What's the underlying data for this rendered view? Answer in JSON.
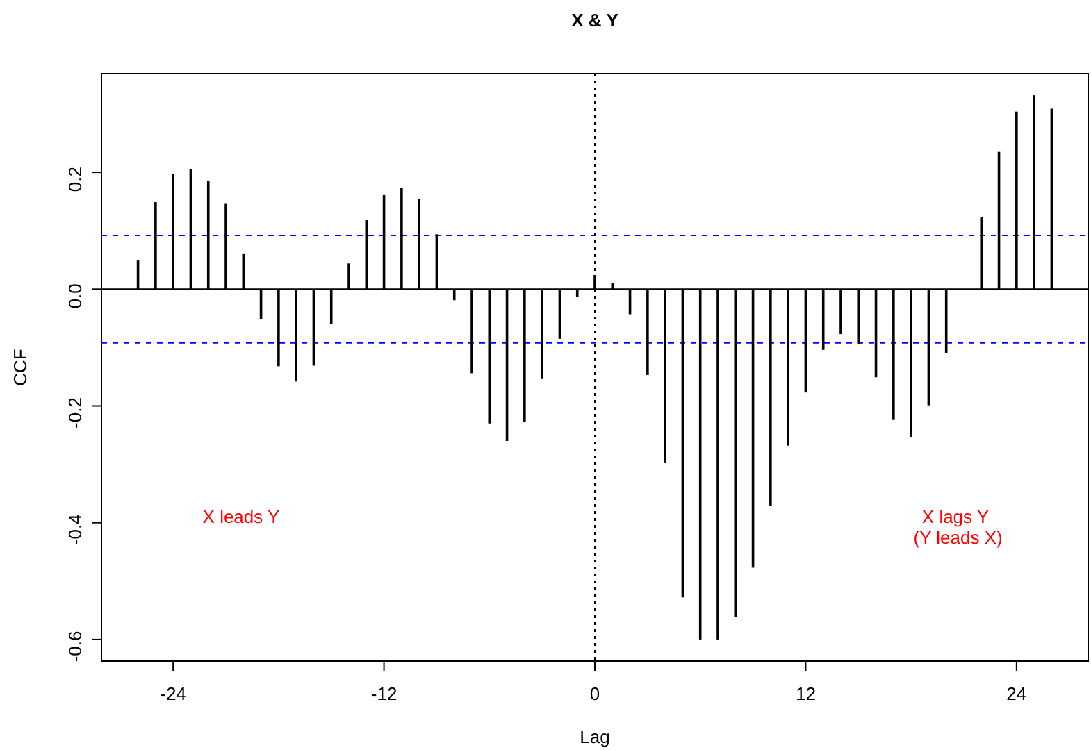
{
  "chart_data": {
    "type": "bar",
    "title": "X & Y",
    "xlabel": "Lag",
    "ylabel": "CCF",
    "x": [
      -26,
      -25,
      -24,
      -23,
      -22,
      -21,
      -20,
      -19,
      -18,
      -17,
      -16,
      -15,
      -14,
      -13,
      -12,
      -11,
      -10,
      -9,
      -8,
      -7,
      -6,
      -5,
      -4,
      -3,
      -2,
      -1,
      0,
      1,
      2,
      3,
      4,
      5,
      6,
      7,
      8,
      9,
      10,
      11,
      12,
      13,
      14,
      15,
      16,
      17,
      18,
      19,
      20,
      21,
      22,
      23,
      24,
      25,
      26
    ],
    "values": [
      0.049,
      0.149,
      0.197,
      0.206,
      0.185,
      0.146,
      0.06,
      -0.051,
      -0.132,
      -0.158,
      -0.131,
      -0.059,
      0.044,
      0.118,
      0.161,
      0.174,
      0.154,
      0.094,
      -0.019,
      -0.144,
      -0.23,
      -0.26,
      -0.228,
      -0.154,
      -0.085,
      -0.014,
      0.024,
      0.01,
      -0.043,
      -0.147,
      -0.298,
      -0.528,
      -0.6,
      -0.6,
      -0.562,
      -0.477,
      -0.371,
      -0.268,
      -0.177,
      -0.104,
      -0.077,
      -0.094,
      -0.151,
      -0.224,
      -0.254,
      -0.199,
      -0.109,
      null,
      0.124,
      0.235,
      0.304,
      0.332,
      0.309
    ],
    "color": "#000000",
    "xlim": [
      -28.08,
      28.08
    ],
    "xticks": [
      -24,
      -12,
      0,
      12,
      24
    ],
    "ylim": [
      -0.637,
      0.369
    ],
    "yticks": [
      -0.6,
      -0.4,
      -0.2,
      {
        "value": 0,
        "label": "0.0"
      },
      0.2
    ],
    "grid": false,
    "ref_lines": [
      {
        "axis": "y",
        "value": 0,
        "color": "#000000",
        "line_style": "solid"
      },
      {
        "axis": "y",
        "value": 0.092,
        "color": "#0000ff",
        "line_style": "dashed"
      },
      {
        "axis": "y",
        "value": -0.092,
        "color": "#0000ff",
        "line_style": "dashed"
      },
      {
        "axis": "x",
        "value": 0,
        "color": "#000000",
        "line_style": "dotted"
      }
    ],
    "annotations": [
      "X leads Y",
      "X lags Y\n (Y leads X)"
    ]
  }
}
